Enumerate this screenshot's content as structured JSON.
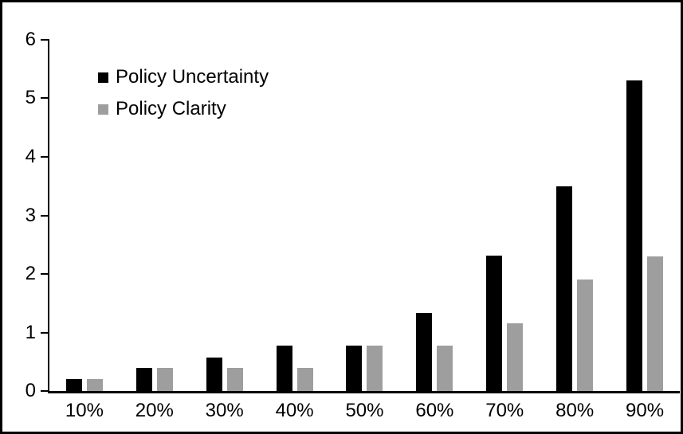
{
  "chart_data": {
    "type": "bar",
    "title": "",
    "xlabel": "",
    "ylabel": "",
    "categories": [
      "10%",
      "20%",
      "30%",
      "40%",
      "50%",
      "60%",
      "70%",
      "80%",
      "90%"
    ],
    "series": [
      {
        "name": "Policy Uncertainty",
        "color": "#000000",
        "values": [
          0.2,
          0.39,
          0.57,
          0.77,
          0.78,
          1.34,
          2.31,
          3.5,
          5.3
        ]
      },
      {
        "name": "Policy Clarity",
        "color": "#9e9e9e",
        "values": [
          0.2,
          0.39,
          0.39,
          0.39,
          0.77,
          0.77,
          1.15,
          1.9,
          2.3
        ]
      }
    ],
    "ylim": [
      0,
      6
    ],
    "yticks": [
      0,
      1,
      2,
      3,
      4,
      5,
      6
    ],
    "grid": false,
    "legend_position": "top-left",
    "frame_color": "#000000",
    "background_color": "#ffffff"
  }
}
